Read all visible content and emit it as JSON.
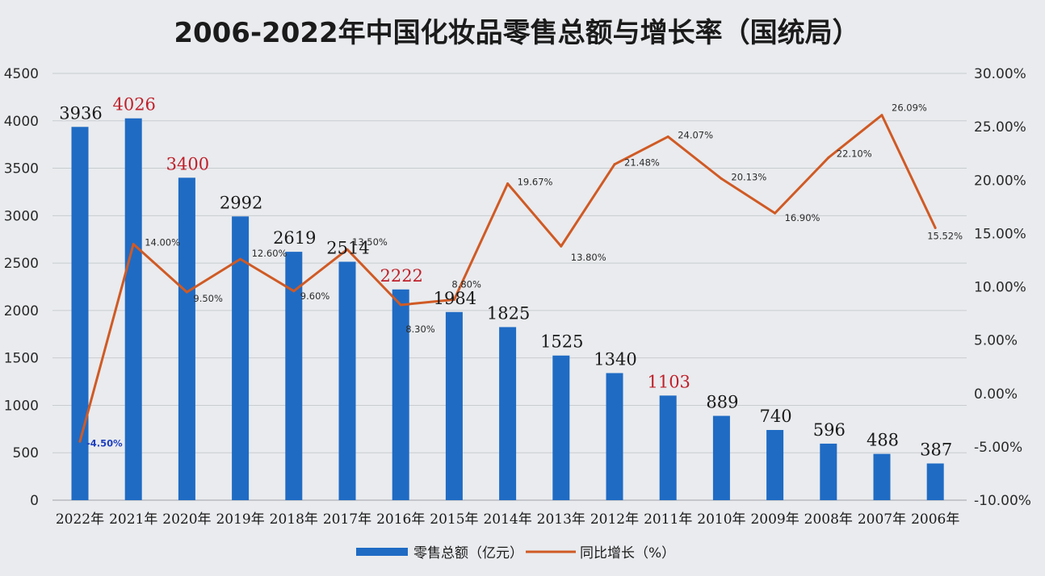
{
  "chart_data": {
    "type": "bar",
    "title": "2006-2022年中国化妆品零售总额与增长率（国统局）",
    "categories": [
      "2022年",
      "2021年",
      "2020年",
      "2019年",
      "2018年",
      "2017年",
      "2016年",
      "2015年",
      "2014年",
      "2013年",
      "2012年",
      "2011年",
      "2010年",
      "2009年",
      "2008年",
      "2007年",
      "2006年"
    ],
    "series": [
      {
        "name": "零售总额（亿元）",
        "kind": "bar",
        "axis": "left",
        "values": [
          3936,
          4026,
          3400,
          2992,
          2619,
          2514,
          2222,
          1984,
          1825,
          1525,
          1340,
          1103,
          889,
          740,
          596,
          488,
          387
        ],
        "label_text": [
          "3936",
          "4026",
          "3400",
          "2992",
          "2619",
          "2514",
          "2222",
          "1984",
          "1825",
          "1525",
          "1340",
          "1103",
          "889",
          "740",
          "596",
          "488",
          "387"
        ],
        "highlighted": [
          "2021年",
          "2020年",
          "2016年",
          "2011年"
        ]
      },
      {
        "name": "同比增长（%）",
        "kind": "line",
        "axis": "right",
        "values": [
          -4.5,
          14.0,
          9.5,
          12.6,
          9.6,
          13.5,
          8.3,
          8.8,
          19.67,
          13.8,
          21.48,
          24.07,
          20.13,
          16.9,
          22.1,
          26.09,
          15.52
        ],
        "label_text": [
          "-4.50%",
          "14.00%",
          "9.50%",
          "12.60%",
          "9.60%",
          "13.50%",
          "8.30%",
          "8.80%",
          "19.67%",
          "13.80%",
          "21.48%",
          "24.07%",
          "20.13%",
          "16.90%",
          "22.10%",
          "26.09%",
          "15.52%"
        ]
      }
    ],
    "y_left": {
      "range": [
        0,
        4500
      ],
      "ticks": [
        0,
        500,
        1000,
        1500,
        2000,
        2500,
        3000,
        3500,
        4000,
        4500
      ],
      "tick_labels": [
        "0",
        "500",
        "1000",
        "1500",
        "2000",
        "2500",
        "3000",
        "3500",
        "4000",
        "4500"
      ]
    },
    "y_right": {
      "range": [
        -10,
        30
      ],
      "ticks": [
        -10,
        -5,
        0,
        5,
        10,
        15,
        20,
        25,
        30
      ],
      "tick_labels": [
        "-10.00%",
        "-5.00%",
        "0.00%",
        "5.00%",
        "10.00%",
        "15.00%",
        "20.00%",
        "25.00%",
        "30.00%"
      ]
    },
    "grid": true,
    "legend_position": "bottom-center"
  },
  "colors": {
    "bar": "#1f6bc4",
    "line": "#d05a24",
    "highlight_label": "#c0202a",
    "negative_label": "#1f3fc0",
    "grid": "#c9ccd0",
    "background": "#e9ebee"
  },
  "legend": {
    "bar_label": "零售总额（亿元）",
    "line_label": "同比增长（%）"
  }
}
